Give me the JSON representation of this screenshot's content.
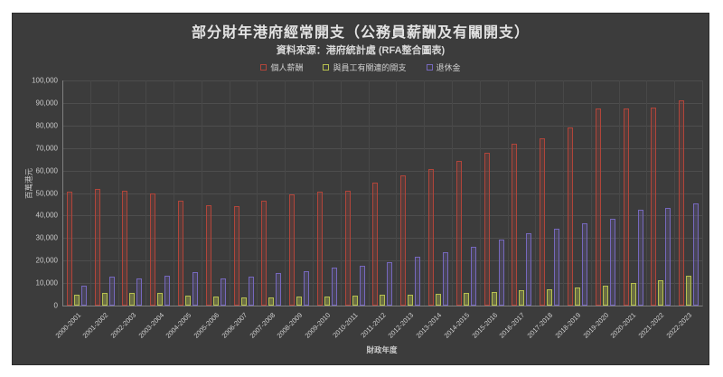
{
  "page": {
    "background": "#ffffff",
    "panel_background": "#3c3c3c",
    "gridline_color": "#4e4e4e",
    "axis_color": "#808080",
    "text_color": "#d8d8d8"
  },
  "header": {
    "title": "部分財年港府經常開支（公務員薪酬及有關開支）",
    "subtitle": "資料來源：港府統計處 (RFA整合圖表)"
  },
  "chart_data": {
    "type": "bar",
    "title": "部分財年港府經常開支（公務員薪酬及有關開支）",
    "subtitle": "資料來源：港府統計處 (RFA整合圖表)",
    "xlabel": "財政年度",
    "ylabel": "百萬港元",
    "ylim": [
      0,
      100000
    ],
    "grid": true,
    "legend_position": "top",
    "y_ticks": [
      "0",
      "10,000",
      "20,000",
      "30,000",
      "40,000",
      "50,000",
      "60,000",
      "70,000",
      "80,000",
      "90,000",
      "100,000"
    ],
    "categories": [
      "2000-2001",
      "2001-2002",
      "2002-2003",
      "2003-2004",
      "2004-2005",
      "2005-2006",
      "2006-2007",
      "2007-2008",
      "2008-2009",
      "2009-2010",
      "2010-2011",
      "2011-2012",
      "2012-2013",
      "2013-2014",
      "2014-2015",
      "2015-2016",
      "2016-2017",
      "2017-2018",
      "2018-2019",
      "2019-2020",
      "2020-2021",
      "2021-2022",
      "2022-2023"
    ],
    "series": [
      {
        "id": "personal-emoluments",
        "name": "個人薪酬",
        "color": "#b0453a",
        "fill": "rgba(176,69,58,0.22)",
        "values": [
          50500,
          52000,
          51200,
          49800,
          46500,
          44600,
          44200,
          46400,
          49400,
          50600,
          51000,
          54600,
          57700,
          60800,
          64400,
          67800,
          71800,
          74400,
          79100,
          87400,
          87400,
          87800,
          91000
        ]
      },
      {
        "id": "staff-related-expenses",
        "name": "與員工有關連的開支",
        "color": "#b6c04f",
        "fill": "rgba(182,192,79,0.38)",
        "values": [
          4700,
          5500,
          5700,
          5500,
          4400,
          4100,
          3600,
          3700,
          4100,
          4100,
          4400,
          4700,
          5000,
          5400,
          5700,
          5900,
          6800,
          7200,
          8000,
          8800,
          9900,
          11100,
          13300
        ]
      },
      {
        "id": "pensions",
        "name": "退休金",
        "color": "#7668bd",
        "fill": "rgba(118,104,189,0.22)",
        "values": [
          9000,
          12800,
          11900,
          13400,
          15000,
          12100,
          13000,
          14300,
          15100,
          16700,
          17800,
          19400,
          21600,
          23600,
          26200,
          29400,
          32000,
          34300,
          36500,
          38700,
          42700,
          43400,
          45400
        ]
      }
    ]
  }
}
